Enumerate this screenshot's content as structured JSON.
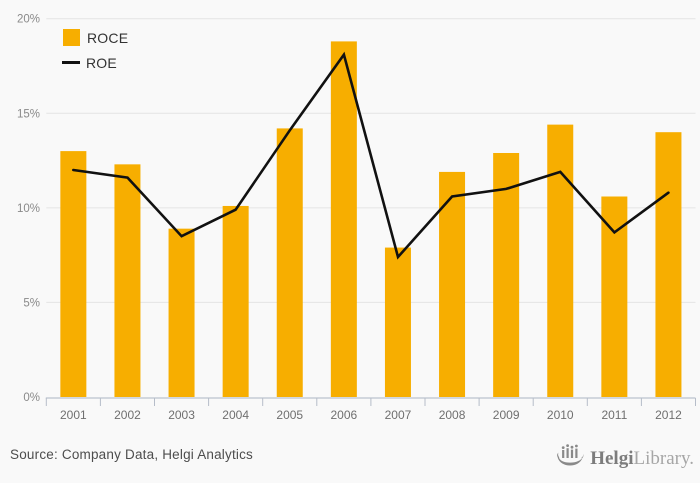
{
  "chart_data": {
    "type": "bar",
    "title": "",
    "xlabel": "",
    "ylabel": "",
    "categories": [
      "2001",
      "2002",
      "2003",
      "2004",
      "2005",
      "2006",
      "2007",
      "2008",
      "2009",
      "2010",
      "2011",
      "2012"
    ],
    "series": [
      {
        "name": "ROCE",
        "type": "bar",
        "color": "#F7AE00",
        "values": [
          13.0,
          12.3,
          8.9,
          10.1,
          14.2,
          18.8,
          7.9,
          11.9,
          12.9,
          14.4,
          10.6,
          14.0
        ]
      },
      {
        "name": "ROE",
        "type": "line",
        "color": "#111111",
        "values": [
          12.0,
          11.6,
          8.5,
          9.9,
          14.1,
          18.1,
          7.4,
          10.6,
          11.0,
          11.9,
          8.7,
          10.8
        ]
      }
    ],
    "ylim": [
      0,
      20
    ],
    "ytick_step": 5,
    "ytick_labels": [
      "0%",
      "5%",
      "10%",
      "15%",
      "20%"
    ],
    "grid": true,
    "legend_position": "top-left"
  },
  "legend": {
    "items": [
      {
        "label": "ROCE",
        "marker": "square",
        "color": "#F7AE00"
      },
      {
        "label": "ROE",
        "marker": "line",
        "color": "#111111"
      }
    ]
  },
  "footer": {
    "source": "Source: Company Data, Helgi Analytics",
    "logo": {
      "bold": "Helgi",
      "light": "Library."
    }
  },
  "colors": {
    "background": "#f9f9f9",
    "gridline": "#e4e4e4",
    "axis_line": "#c6ccd6",
    "tick": "#b6bdc9",
    "y_label": "#8a8a8a",
    "x_label": "#6f6f6f",
    "bar": "#F7AE00",
    "line": "#111111"
  }
}
